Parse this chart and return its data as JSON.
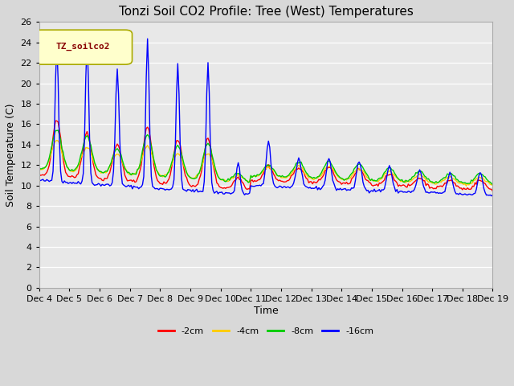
{
  "title": "Tonzi Soil CO2 Profile: Tree (West) Temperatures",
  "ylabel": "Soil Temperature (C)",
  "xlabel": "Time",
  "ylim": [
    0,
    26
  ],
  "yticks": [
    0,
    2,
    4,
    6,
    8,
    10,
    12,
    14,
    16,
    18,
    20,
    22,
    24,
    26
  ],
  "legend_label": "TZ_soilco2",
  "series_labels": [
    "-2cm",
    "-4cm",
    "-8cm",
    "-16cm"
  ],
  "series_colors": [
    "#ff0000",
    "#ffcc00",
    "#00cc00",
    "#0000ff"
  ],
  "xtick_labels": [
    "Dec 4",
    "Dec 5",
    "Dec 6",
    "Dec 7",
    "Dec 8",
    "Dec 9",
    "Dec 10",
    "Dec 11",
    "Dec 12",
    "Dec 13",
    "Dec 14",
    "Dec 15",
    "Dec 16",
    "Dec 17",
    "Dec 18",
    "Dec 19"
  ],
  "background_color": "#e0e0e0",
  "plot_bg_color": "#e8e8e8",
  "title_fontsize": 11,
  "axis_fontsize": 9,
  "tick_fontsize": 8
}
